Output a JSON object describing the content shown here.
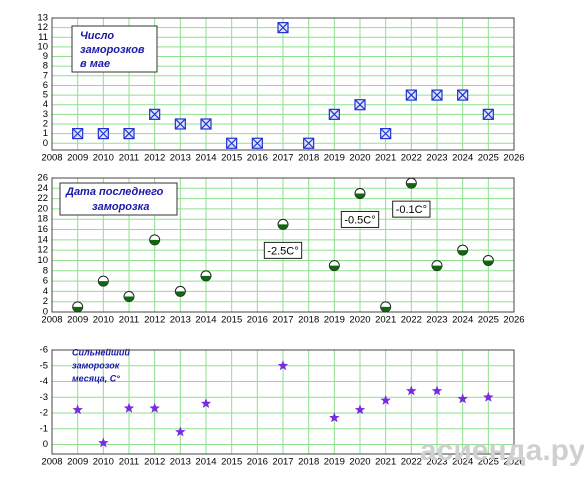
{
  "chart_data": [
    {
      "type": "scatter",
      "title": [
        "Число",
        "заморозков",
        "в мае"
      ],
      "x": [
        2009,
        2010,
        2011,
        2012,
        2013,
        2014,
        2015,
        2016,
        2017,
        2018,
        2019,
        2020,
        2021,
        2022,
        2023,
        2024,
        2025
      ],
      "values": [
        1,
        1,
        1,
        3,
        2,
        2,
        0,
        0,
        12,
        0,
        3,
        4,
        1,
        5,
        5,
        5,
        3
      ],
      "color": "#2233cc",
      "grid": true,
      "xlim": [
        2008,
        2026
      ],
      "xticks": [
        2008,
        2009,
        2010,
        2011,
        2012,
        2013,
        2014,
        2015,
        2016,
        2017,
        2018,
        2019,
        2020,
        2021,
        2022,
        2023,
        2024,
        2025,
        2026
      ],
      "ylim": [
        -0.7,
        13
      ],
      "yticks": [
        0,
        1,
        2,
        3,
        4,
        5,
        6,
        7,
        8,
        9,
        10,
        11,
        12,
        13
      ]
    },
    {
      "type": "scatter",
      "title": [
        "Дата последнего",
        "заморозка"
      ],
      "x": [
        2009,
        2010,
        2011,
        2012,
        2013,
        2014,
        2017,
        2019,
        2020,
        2021,
        2022,
        2023,
        2024,
        2025
      ],
      "values": [
        1,
        6,
        3,
        14,
        4,
        7,
        17,
        9,
        23,
        1,
        25,
        9,
        12,
        10
      ],
      "color": "#116611",
      "grid": true,
      "xlim": [
        2008,
        2026
      ],
      "xticks": [
        2008,
        2009,
        2010,
        2011,
        2012,
        2013,
        2014,
        2015,
        2016,
        2017,
        2018,
        2019,
        2020,
        2021,
        2022,
        2023,
        2024,
        2025,
        2026
      ],
      "ylim": [
        0,
        26
      ],
      "yticks": [
        0,
        2,
        4,
        6,
        8,
        10,
        12,
        14,
        16,
        18,
        20,
        22,
        24,
        26
      ],
      "annotations": [
        {
          "x": 2017,
          "text": "-2.5C°"
        },
        {
          "x": 2020,
          "text": "-0.5C°"
        },
        {
          "x": 2022,
          "text": "-0.1C°"
        }
      ]
    },
    {
      "type": "scatter",
      "title": [
        "Сильнейший",
        "заморозок",
        "месяца, С°"
      ],
      "x": [
        2009,
        2010,
        2011,
        2012,
        2013,
        2014,
        2017,
        2019,
        2020,
        2021,
        2022,
        2023,
        2024,
        2025
      ],
      "values": [
        -2.2,
        -0.1,
        -2.3,
        -2.3,
        -0.8,
        -2.6,
        -5,
        -1.7,
        -2.2,
        -2.8,
        -3.4,
        -3.4,
        -2.9,
        -3.0
      ],
      "color": "#7a2be0",
      "grid": true,
      "y_inverted": true,
      "xlim": [
        2008,
        2026
      ],
      "xticks": [
        2008,
        2009,
        2010,
        2011,
        2012,
        2013,
        2014,
        2015,
        2016,
        2017,
        2018,
        2019,
        2020,
        2021,
        2022,
        2023,
        2024,
        2025,
        2026
      ],
      "ylim": [
        -6,
        0.6
      ],
      "yticks": [
        -6,
        -5,
        -4,
        -3,
        -2,
        -1,
        0
      ]
    }
  ],
  "watermark": "асиенда.ру"
}
